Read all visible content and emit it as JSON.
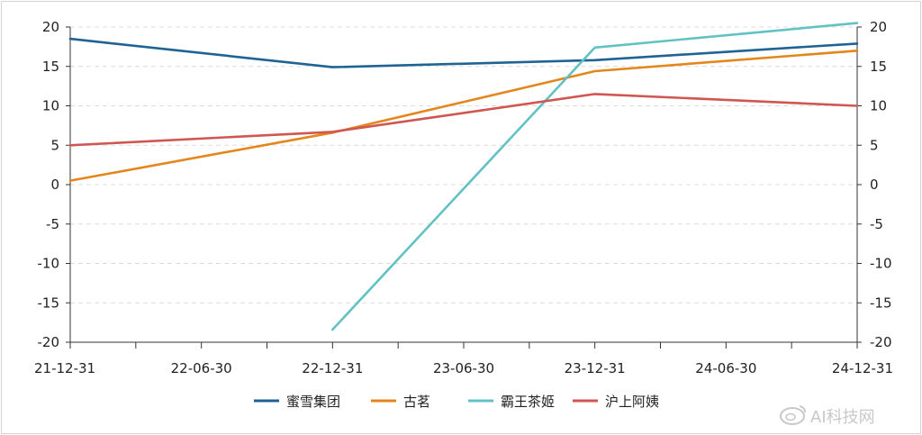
{
  "chart_data": {
    "type": "line",
    "x": [
      "21-12-31",
      "22-06-30",
      "22-12-31",
      "23-06-30",
      "23-12-31",
      "24-06-30",
      "24-12-31"
    ],
    "ylim": [
      -20,
      20
    ],
    "yticks": [
      20,
      15,
      10,
      5,
      0,
      -5,
      -10,
      -15,
      -20
    ],
    "right_axis": true,
    "grid": "horizontal-dashed",
    "legend": "bottom",
    "series": [
      {
        "name": "蜜雪集团",
        "color": "#1f6394",
        "points": [
          [
            "21-12-31",
            18.5
          ],
          [
            "22-12-31",
            14.9
          ],
          [
            "23-12-31",
            15.8
          ],
          [
            "24-12-31",
            17.9
          ]
        ]
      },
      {
        "name": "古茗",
        "color": "#e3861b",
        "points": [
          [
            "21-12-31",
            0.5
          ],
          [
            "22-12-31",
            6.6
          ],
          [
            "23-12-31",
            14.4
          ],
          [
            "24-12-31",
            17.0
          ]
        ]
      },
      {
        "name": "霸王茶姬",
        "color": "#62c2c3",
        "points": [
          [
            "22-12-31",
            -18.4
          ],
          [
            "23-12-31",
            17.4
          ],
          [
            "24-12-31",
            20.5
          ]
        ]
      },
      {
        "name": "沪上阿姨",
        "color": "#cf5651",
        "points": [
          [
            "21-12-31",
            5.0
          ],
          [
            "22-12-31",
            6.7
          ],
          [
            "23-12-31",
            11.5
          ],
          [
            "24-12-31",
            10.0
          ]
        ]
      }
    ]
  },
  "watermark": {
    "text": "AI科技网",
    "icon": "weibo-logo-icon"
  }
}
